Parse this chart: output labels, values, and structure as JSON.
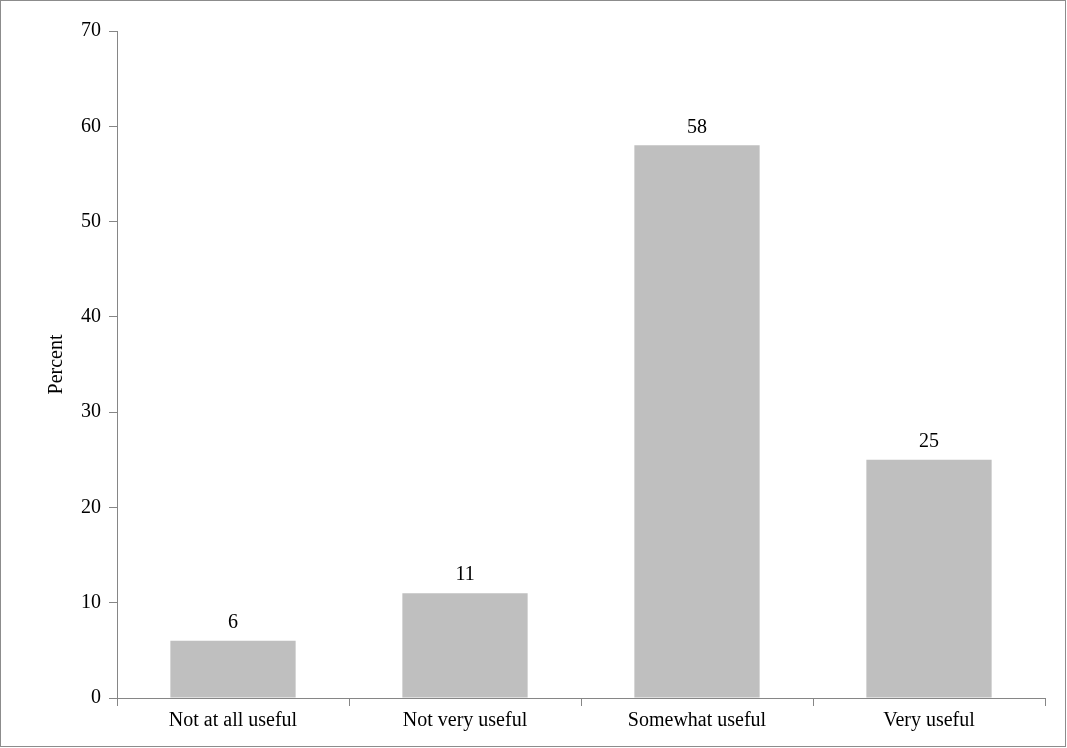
{
  "chart_data": {
    "type": "bar",
    "ylabel": "Percent",
    "categories": [
      "Not at all useful",
      "Not very useful",
      "Somewhat useful",
      "Very useful"
    ],
    "values": [
      6,
      11,
      58,
      25
    ],
    "color": "#bfbfbf",
    "ylim": [
      0,
      70
    ],
    "yticks": [
      0,
      10,
      20,
      30,
      40,
      50,
      60,
      70
    ],
    "grid": false,
    "legend": false,
    "data_labels": true
  }
}
